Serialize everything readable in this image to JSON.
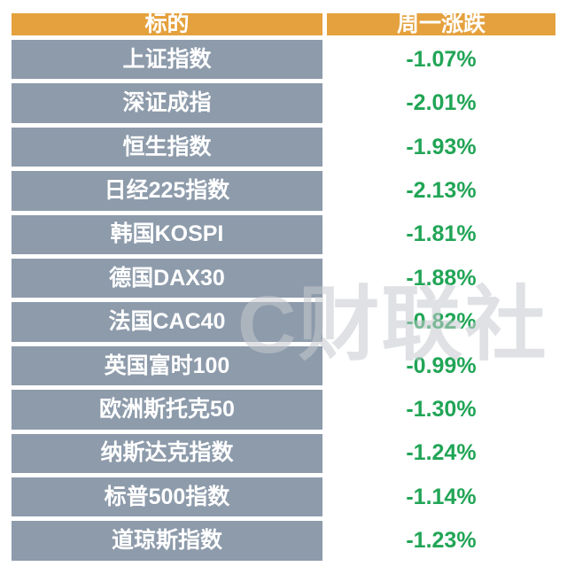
{
  "watermark": "C财联社",
  "colors": {
    "header_bg": "#E5A13D",
    "row_bg": "#8D9BAB",
    "change_text": "#21A556",
    "grid": "#FFFFFF"
  },
  "chart_data": {
    "type": "table",
    "title": "",
    "columns": [
      "标的",
      "周一涨跌"
    ],
    "rows": [
      [
        "上证指数",
        "-1.07%"
      ],
      [
        "深证成指",
        "-2.01%"
      ],
      [
        "恒生指数",
        "-1.93%"
      ],
      [
        "日经225指数",
        "-2.13%"
      ],
      [
        "韩国KOSPI",
        "-1.81%"
      ],
      [
        "德国DAX30",
        "-1.88%"
      ],
      [
        "法国CAC40",
        "-0.82%"
      ],
      [
        "英国富时100",
        "-0.99%"
      ],
      [
        "欧洲斯托克50",
        "-1.30%"
      ],
      [
        "纳斯达克指数",
        "-1.24%"
      ],
      [
        "标普500指数",
        "-1.14%"
      ],
      [
        "道琼斯指数",
        "-1.23%"
      ]
    ]
  }
}
